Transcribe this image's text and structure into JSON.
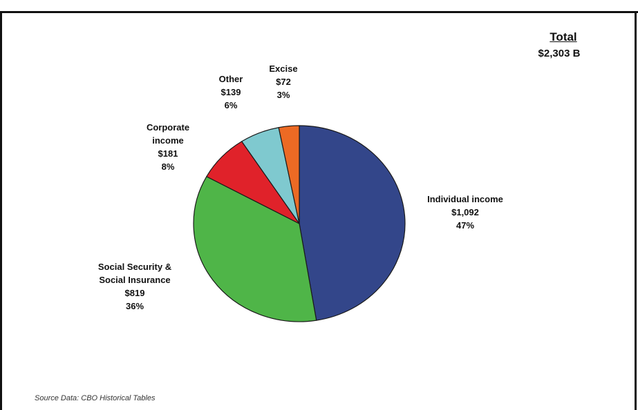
{
  "chart_data": {
    "type": "pie",
    "title": "",
    "total": {
      "label": "Total",
      "value": "$2,303 B"
    },
    "slices": [
      {
        "name": [
          "Individual income"
        ],
        "amount": "$1,092",
        "percent": "47%",
        "value": 1092,
        "color": "#33468a"
      },
      {
        "name": [
          "Social Security &",
          "Social Insurance"
        ],
        "amount": "$819",
        "percent": "36%",
        "value": 819,
        "color": "#4fb548"
      },
      {
        "name": [
          "Corporate",
          "income"
        ],
        "amount": "$181",
        "percent": "8%",
        "value": 181,
        "color": "#e0222a"
      },
      {
        "name": [
          "Other"
        ],
        "amount": "$139",
        "percent": "6%",
        "value": 139,
        "color": "#7fc9cf"
      },
      {
        "name": [
          "Excise"
        ],
        "amount": "$72",
        "percent": "3%",
        "value": 72,
        "color": "#ec6a24"
      }
    ],
    "source": "Source Data: CBO Historical Tables"
  }
}
